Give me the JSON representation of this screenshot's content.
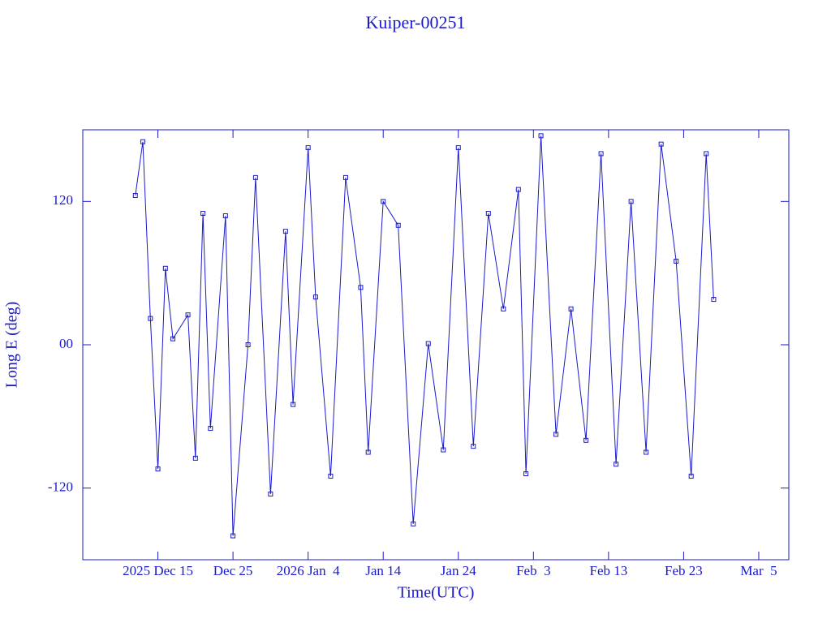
{
  "chart_data": {
    "type": "line",
    "title": "Kuiper-00251",
    "x_label": "Time(UTC)",
    "y_label": "Long E (deg)",
    "x": [
      "2025-12-12",
      "2025-12-13",
      "2025-12-14",
      "2025-12-15",
      "2025-12-16",
      "2025-12-17",
      "2025-12-19",
      "2025-12-20",
      "2025-12-21",
      "2025-12-22",
      "2025-12-24",
      "2025-12-25",
      "2025-12-27",
      "2025-12-28",
      "2025-12-30",
      "2026-01-01",
      "2026-01-02",
      "2026-01-04",
      "2026-01-05",
      "2026-01-07",
      "2026-01-09",
      "2026-01-11",
      "2026-01-12",
      "2026-01-14",
      "2026-01-16",
      "2026-01-18",
      "2026-01-20",
      "2026-01-22",
      "2026-01-24",
      "2026-01-26",
      "2026-01-28",
      "2026-01-30",
      "2026-02-01",
      "2026-02-02",
      "2026-02-04",
      "2026-02-06",
      "2026-02-08",
      "2026-02-10",
      "2026-02-12",
      "2026-02-14",
      "2026-02-16",
      "2026-02-18",
      "2026-02-20",
      "2026-02-22",
      "2026-02-24",
      "2026-02-26",
      "2026-02-27"
    ],
    "series": [
      {
        "name": "Kuiper-00251",
        "color": "#1a1acc",
        "values": [
          125,
          170,
          22,
          -104,
          64,
          5,
          25,
          -95,
          110,
          -70,
          108,
          -160,
          0,
          140,
          -125,
          95,
          -50,
          165,
          40,
          -110,
          140,
          48,
          -90,
          120,
          100,
          -150,
          1,
          -88,
          165,
          -85,
          110,
          30,
          130,
          -108,
          175,
          -75,
          30,
          -80,
          160,
          -100,
          120,
          -90,
          168,
          70,
          -110,
          160,
          38
        ]
      }
    ],
    "xlim": [
      "2025-12-05",
      "2026-03-09"
    ],
    "xticks": [
      {
        "value": "2025-12-15",
        "label": "2025 Dec 15"
      },
      {
        "value": "2025-12-25",
        "label": "Dec 25"
      },
      {
        "value": "2026-01-04",
        "label": "2026 Jan  4"
      },
      {
        "value": "2026-01-14",
        "label": "Jan 14"
      },
      {
        "value": "2026-01-24",
        "label": "Jan 24"
      },
      {
        "value": "2026-02-03",
        "label": "Feb  3"
      },
      {
        "value": "2026-02-13",
        "label": "Feb 13"
      },
      {
        "value": "2026-02-23",
        "label": "Feb 23"
      },
      {
        "value": "2026-03-05",
        "label": "Mar  5"
      }
    ],
    "ylim": [
      -180,
      180
    ],
    "yticks": [
      -120,
      {
        "value": 0,
        "label": "00"
      },
      120
    ]
  }
}
